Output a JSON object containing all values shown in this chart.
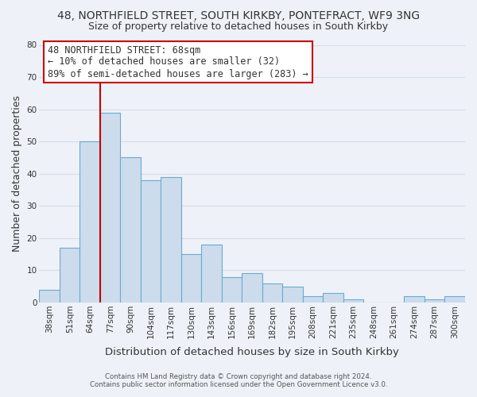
{
  "title1": "48, NORTHFIELD STREET, SOUTH KIRKBY, PONTEFRACT, WF9 3NG",
  "title2": "Size of property relative to detached houses in South Kirkby",
  "xlabel": "Distribution of detached houses by size in South Kirkby",
  "ylabel": "Number of detached properties",
  "categories": [
    "38sqm",
    "51sqm",
    "64sqm",
    "77sqm",
    "90sqm",
    "104sqm",
    "117sqm",
    "130sqm",
    "143sqm",
    "156sqm",
    "169sqm",
    "182sqm",
    "195sqm",
    "208sqm",
    "221sqm",
    "235sqm",
    "248sqm",
    "261sqm",
    "274sqm",
    "287sqm",
    "300sqm"
  ],
  "values": [
    4,
    17,
    50,
    59,
    45,
    38,
    39,
    15,
    18,
    8,
    9,
    6,
    5,
    2,
    3,
    1,
    0,
    0,
    2,
    1,
    2
  ],
  "bar_color": "#ccdcec",
  "bar_edge_color": "#6aaad4",
  "vline_color": "#cc0000",
  "annotation_text": "48 NORTHFIELD STREET: 68sqm\n← 10% of detached houses are smaller (32)\n89% of semi-detached houses are larger (283) →",
  "annotation_box_color": "#ffffff",
  "annotation_box_edge": "#cc0000",
  "ylim": [
    0,
    80
  ],
  "yticks": [
    0,
    10,
    20,
    30,
    40,
    50,
    60,
    70,
    80
  ],
  "grid_color": "#d4dde8",
  "background_color": "#eef2f8",
  "footer1": "Contains HM Land Registry data © Crown copyright and database right 2024.",
  "footer2": "Contains public sector information licensed under the Open Government Licence v3.0.",
  "title_fontsize": 10,
  "subtitle_fontsize": 9,
  "axis_label_fontsize": 9,
  "tick_fontsize": 7.5,
  "annotation_fontsize": 8.5
}
